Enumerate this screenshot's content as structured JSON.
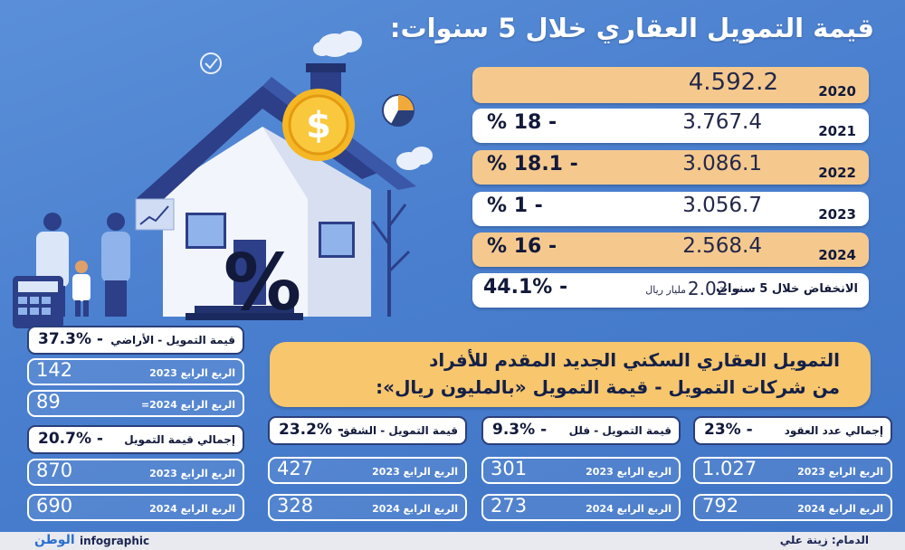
{
  "title": "قيمة التمويل العقاري خلال 5 سنوات:",
  "yearly": [
    {
      "year": "2020",
      "amount": "4.592.2",
      "change": ""
    },
    {
      "year": "2021",
      "amount": "3.767.4",
      "change": "- 18 %"
    },
    {
      "year": "2022",
      "amount": "3.086.1",
      "change": "- 18.1 %"
    },
    {
      "year": "2023",
      "amount": "3.056.7",
      "change": "- 1 %"
    },
    {
      "year": "2024",
      "amount": "2.568.4",
      "change": "- 16 %"
    }
  ],
  "summary": {
    "label": "الانخفاض خلال 5 سنوات",
    "value": "- 2.02",
    "unit": "مليار ريال",
    "change": "- 44.1%"
  },
  "headline": {
    "line1": "التمويل العقاري السكني الجديد المقدم للأفراد",
    "line2": "من شركات التمويل - قيمة التمويل «بالمليون ريال»:"
  },
  "cards": {
    "contracts": {
      "label": "إجمالي عدد العقود",
      "change": "- 23%",
      "q2023_label": "الربع الرابع 2023",
      "q2023": "1.027",
      "q2024_label": "الربع الرابع 2024",
      "q2024": "792"
    },
    "villa": {
      "label": "قيمة التمويل - فلل",
      "change": "- 9.3%",
      "q2023_label": "الربع الرابع 2023",
      "q2023": "301",
      "q2024_label": "الربع الرابع 2024",
      "q2024": "273"
    },
    "apartment": {
      "label": "قيمة التمويل - الشقق",
      "change": "- 23.2%",
      "q2023_label": "الربع الرابع 2023",
      "q2023": "427",
      "q2024_label": "الربع الرابع 2024",
      "q2024": "328"
    },
    "total": {
      "label": "إجمالي قيمة التمويل",
      "change": "- 20.7%",
      "q2023_label": "الربع الرابع 2023",
      "q2023": "870",
      "q2024_label": "الربع الرابع 2024",
      "q2024": "690"
    },
    "land": {
      "label": "قيمة التمويل - الأراضي",
      "change": "- 37.3%",
      "q2023_label": "الربع الرابع 2023",
      "q2023": "142",
      "q2024_label": "الربع الرابع 2024=",
      "q2024": "89"
    }
  },
  "footer": {
    "credit": "الدمام: زينة علي",
    "brand": "الوطن",
    "tag": "infographic"
  },
  "icons": [
    "house-illustration",
    "dollar-coin-icon",
    "percent-sign-icon",
    "calculator-icon",
    "family-illustration",
    "checkmark-icon",
    "pie-chart-icon",
    "cloud-icon"
  ],
  "colors": {
    "background": "#4a7fcf",
    "orange_bar": "#f5c98e",
    "headline": "#f7c66d",
    "dark_text": "#12193a"
  }
}
